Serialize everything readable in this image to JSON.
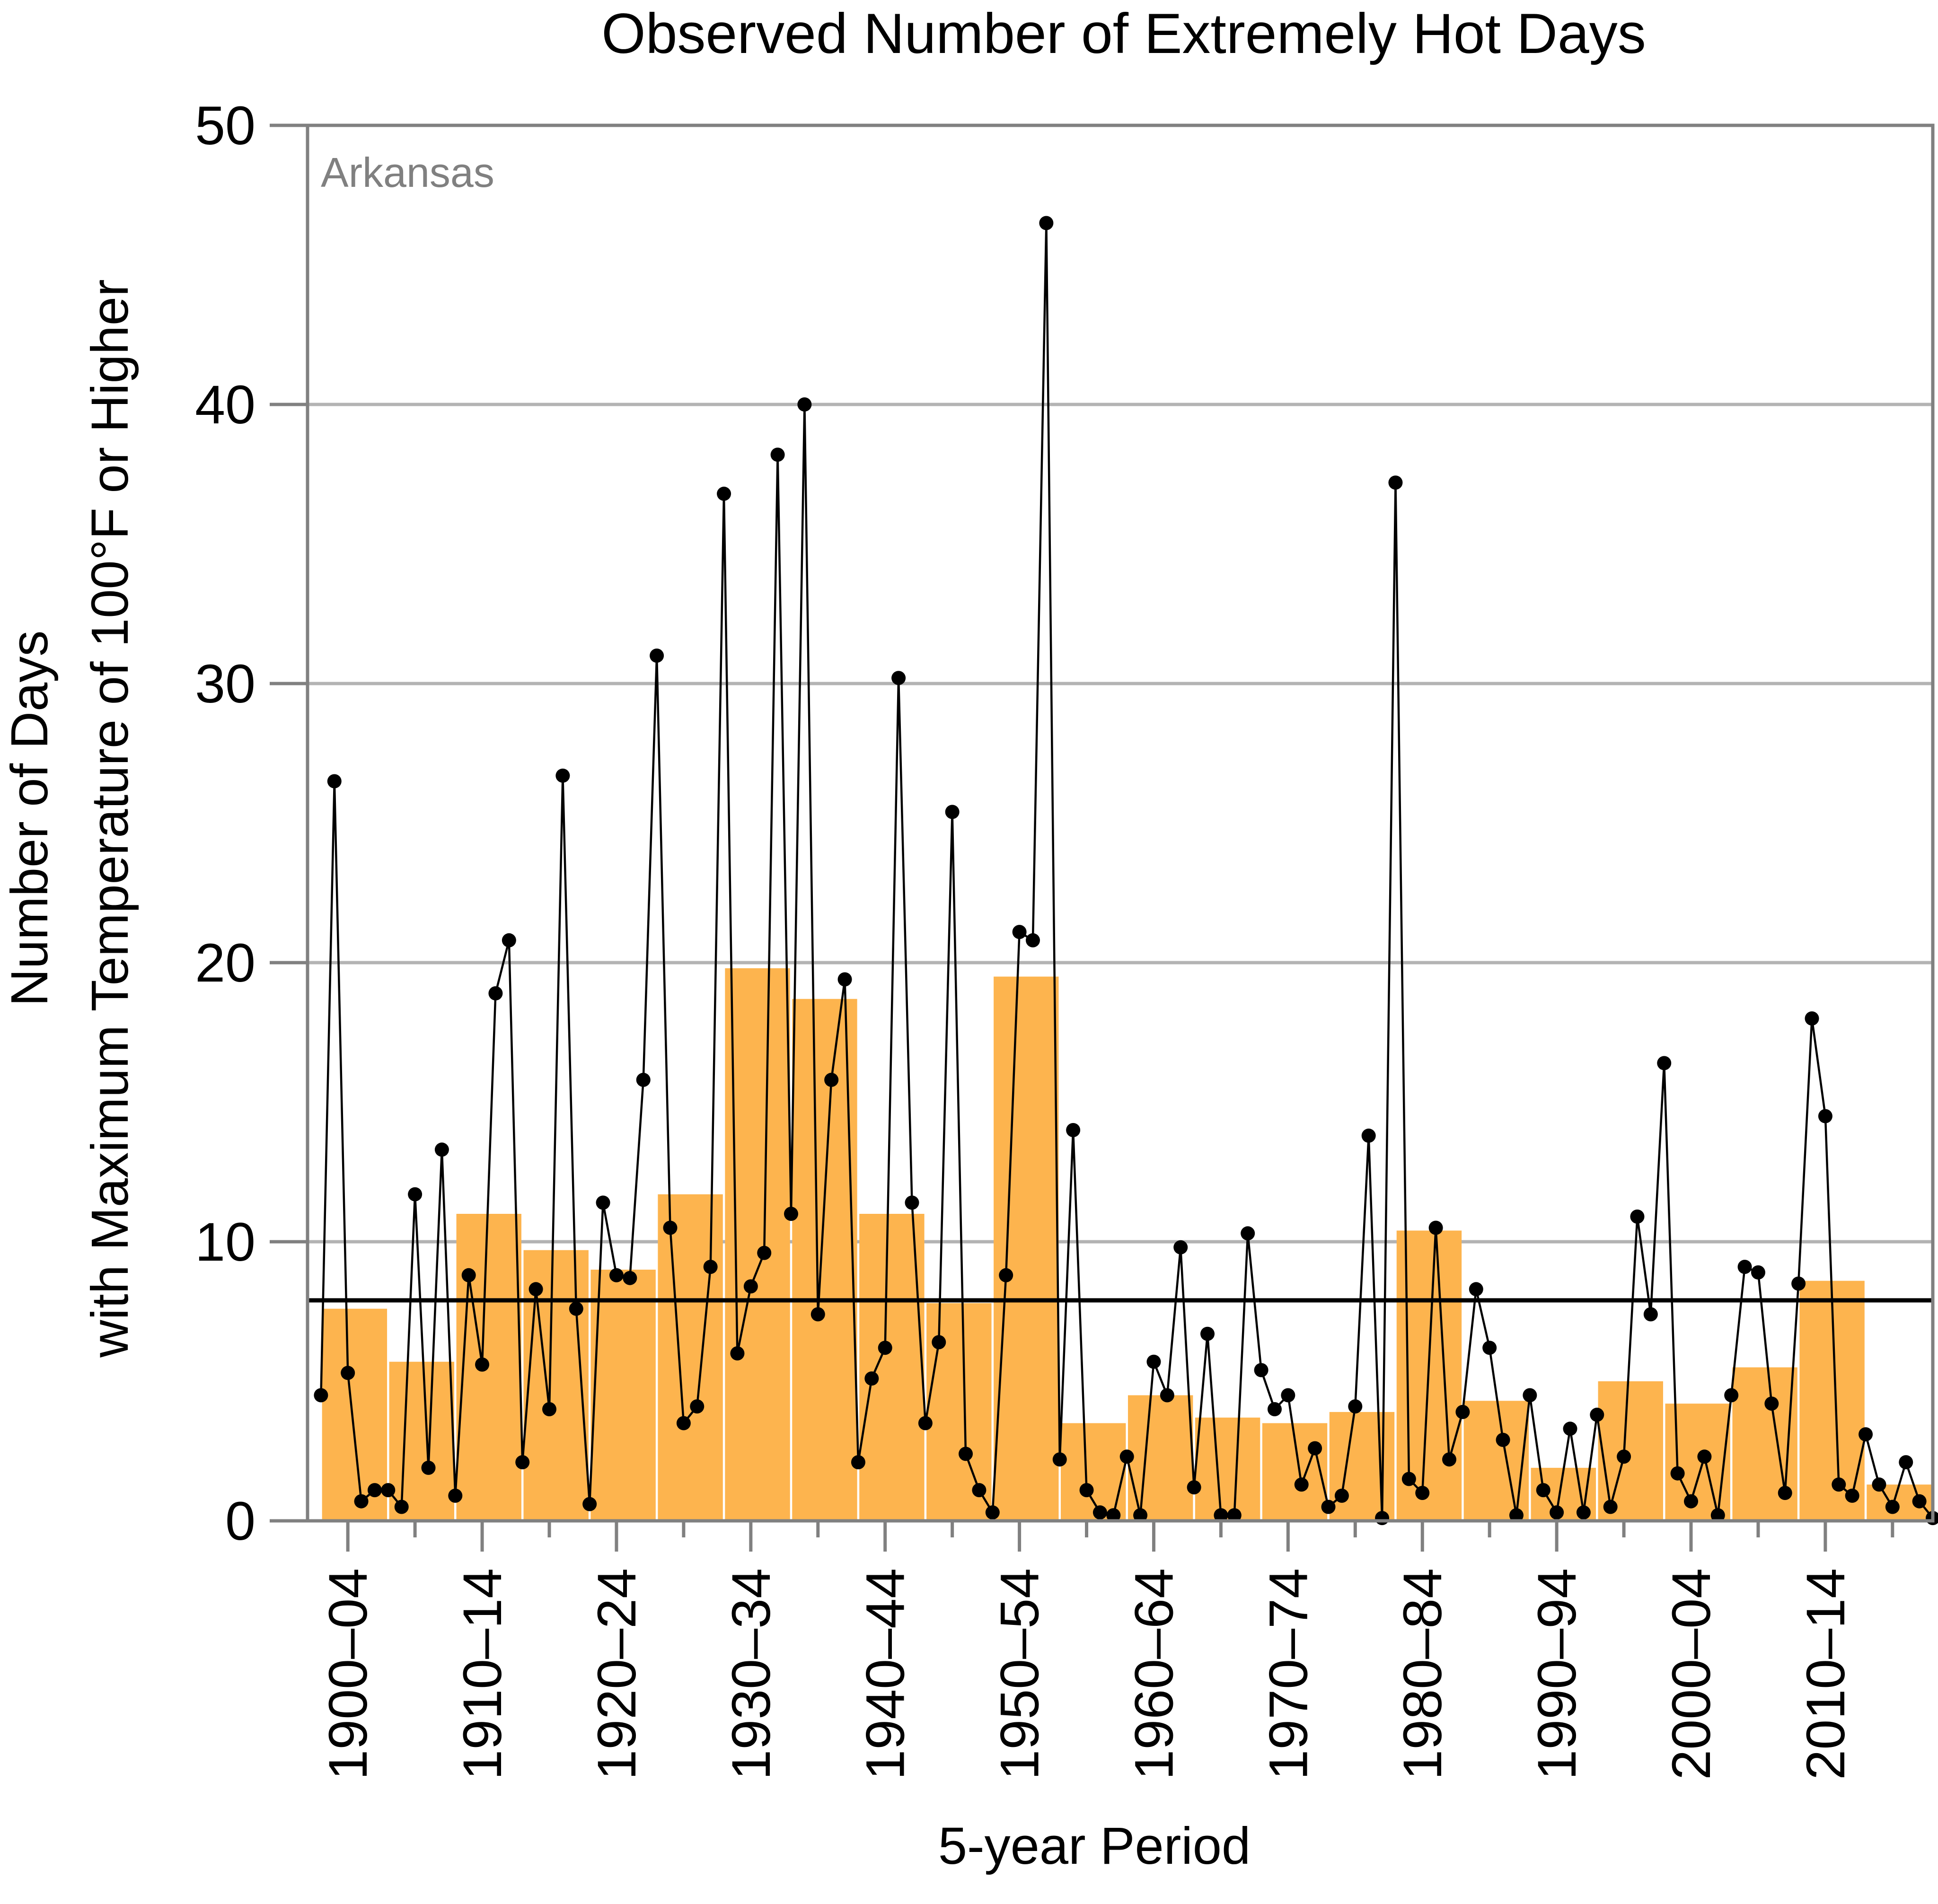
{
  "chart_data": {
    "type": "bar",
    "title": "Observed Number of Extremely Hot Days",
    "xlabel": "5-year Period",
    "ylabel_line1": "Number of Days",
    "ylabel_line2": "with Maximum Temperature of 100°F or Higher",
    "annotation": "Arkansas",
    "ylim": [
      0,
      50
    ],
    "yticks": [
      0,
      10,
      20,
      30,
      40,
      50
    ],
    "grid": true,
    "xlim": [
      1899,
      2020
    ],
    "xticks": [
      {
        "label": "1900–04",
        "x": 1902
      },
      {
        "label": "1910–14",
        "x": 1912
      },
      {
        "label": "1920–24",
        "x": 1922
      },
      {
        "label": "1930–34",
        "x": 1932
      },
      {
        "label": "1940–44",
        "x": 1942
      },
      {
        "label": "1950–54",
        "x": 1952
      },
      {
        "label": "1960–64",
        "x": 1962
      },
      {
        "label": "1970–74",
        "x": 1972
      },
      {
        "label": "1980–84",
        "x": 1982
      },
      {
        "label": "1990–94",
        "x": 1992
      },
      {
        "label": "2000–04",
        "x": 2002
      },
      {
        "label": "2010–14",
        "x": 2012
      }
    ],
    "minor_ticks": [
      1907,
      1917,
      1927,
      1937,
      1947,
      1957,
      1967,
      1977,
      1987,
      1997,
      2007,
      2017
    ],
    "long_term_average": 7.9,
    "bars": [
      {
        "start": 1900,
        "value": 7.6
      },
      {
        "start": 1905,
        "value": 5.7
      },
      {
        "start": 1910,
        "value": 11.0
      },
      {
        "start": 1915,
        "value": 9.7
      },
      {
        "start": 1920,
        "value": 9.0
      },
      {
        "start": 1925,
        "value": 11.7
      },
      {
        "start": 1930,
        "value": 19.8
      },
      {
        "start": 1935,
        "value": 18.7
      },
      {
        "start": 1940,
        "value": 11.0
      },
      {
        "start": 1945,
        "value": 7.8
      },
      {
        "start": 1950,
        "value": 19.5
      },
      {
        "start": 1955,
        "value": 3.5
      },
      {
        "start": 1960,
        "value": 4.5
      },
      {
        "start": 1965,
        "value": 3.7
      },
      {
        "start": 1970,
        "value": 3.5
      },
      {
        "start": 1975,
        "value": 3.9
      },
      {
        "start": 1980,
        "value": 10.4
      },
      {
        "start": 1985,
        "value": 4.3
      },
      {
        "start": 1990,
        "value": 1.9
      },
      {
        "start": 1995,
        "value": 5.0
      },
      {
        "start": 2000,
        "value": 4.2
      },
      {
        "start": 2005,
        "value": 5.5
      },
      {
        "start": 2010,
        "value": 8.6
      },
      {
        "start": 2015,
        "value": 1.3
      }
    ],
    "annual": {
      "start_year": 1900,
      "values": [
        4.5,
        26.5,
        5.3,
        0.7,
        1.1,
        1.1,
        0.5,
        11.7,
        1.9,
        13.3,
        0.9,
        8.8,
        5.6,
        18.9,
        20.8,
        2.1,
        8.3,
        4.0,
        26.7,
        7.6,
        0.6,
        11.4,
        8.8,
        8.7,
        15.8,
        31.0,
        10.5,
        3.5,
        4.1,
        9.1,
        36.8,
        6.0,
        8.4,
        9.6,
        38.2,
        11.0,
        40.0,
        7.4,
        15.8,
        19.4,
        2.1,
        5.1,
        6.2,
        30.2,
        11.4,
        3.5,
        6.4,
        25.4,
        2.4,
        1.1,
        0.3,
        8.8,
        21.1,
        20.8,
        46.5,
        2.2,
        14.0,
        1.1,
        0.3,
        0.2,
        2.3,
        0.2,
        5.7,
        4.5,
        9.8,
        1.2,
        6.7,
        0.2,
        0.2,
        10.3,
        5.4,
        4.0,
        4.5,
        1.3,
        2.6,
        0.5,
        0.9,
        4.1,
        13.8,
        0.1,
        37.2,
        1.5,
        1.0,
        10.5,
        2.2,
        3.9,
        8.3,
        6.2,
        2.9,
        0.2,
        4.5,
        1.1,
        0.3,
        3.3,
        0.3,
        3.8,
        0.5,
        2.3,
        10.9,
        7.4,
        16.4,
        1.7,
        0.7,
        2.3,
        0.2,
        4.5,
        9.1,
        8.9,
        4.2,
        1.0,
        8.5,
        18.0,
        14.5,
        1.3,
        0.9,
        3.1,
        1.3,
        0.5,
        2.1,
        0.7,
        0.1
      ]
    },
    "colors": {
      "bar": "#fdb44e",
      "line": "#000000",
      "dot": "#000000",
      "average_line": "#000000",
      "grid": "#b3b3b3",
      "frame": "#808080",
      "annotation": "#808080"
    }
  }
}
